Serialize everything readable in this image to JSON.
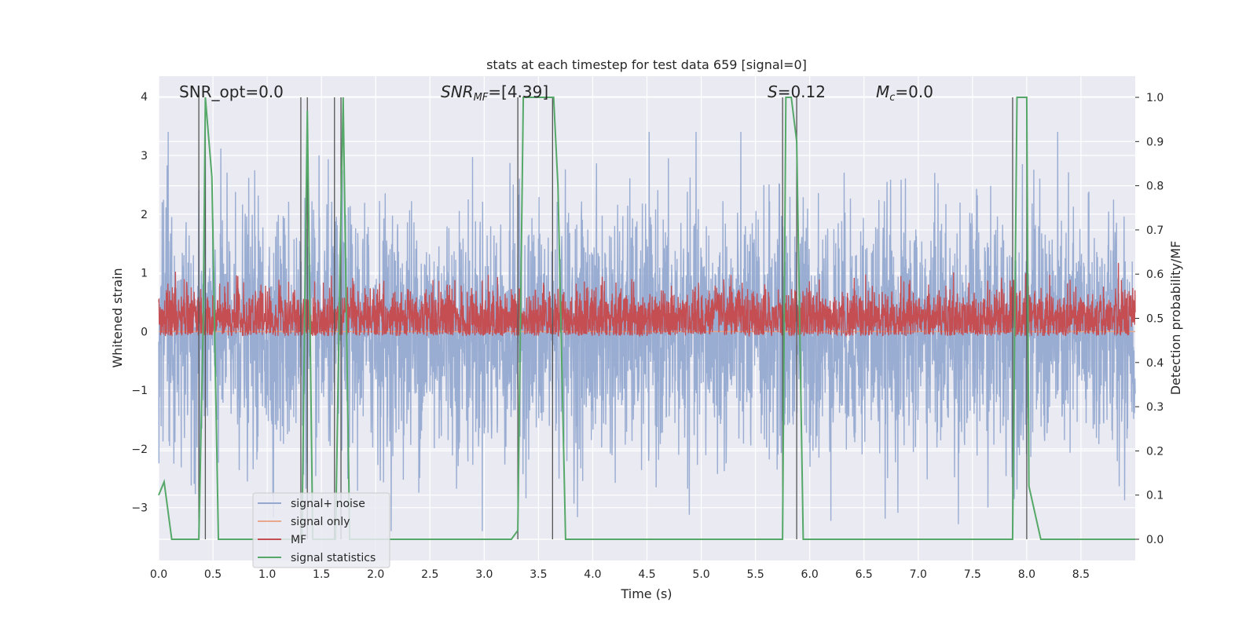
{
  "chart_data": {
    "type": "line",
    "title": "stats at each timestep for test data 659 [signal=0]",
    "xlabel": "Time (s)",
    "ylabel_left": "Whitened strain",
    "ylabel_right": "Detection probability/MF",
    "xlim": [
      0.0,
      9.0
    ],
    "ylim_left": [
      -3.9,
      4.35
    ],
    "ylim_right": [
      -0.048,
      1.048
    ],
    "x_ticks": [
      "0.0",
      "0.5",
      "1.0",
      "1.5",
      "2.0",
      "2.5",
      "3.0",
      "3.5",
      "4.0",
      "4.5",
      "5.0",
      "5.5",
      "6.0",
      "6.5",
      "7.0",
      "7.5",
      "8.0",
      "8.5"
    ],
    "y_ticks_left": [
      "−3",
      "−2",
      "−1",
      "0",
      "1",
      "2",
      "3",
      "4"
    ],
    "y_ticks_right": [
      "0.0",
      "0.1",
      "0.2",
      "0.3",
      "0.4",
      "0.5",
      "0.6",
      "0.7",
      "0.8",
      "0.9",
      "1.0"
    ],
    "grid": true,
    "legend_position": "lower-left",
    "annotations": {
      "snr_opt": "SNR_opt=0.0",
      "snr_mf_prefix": "SNR",
      "snr_mf_sub": "MF",
      "snr_mf_suffix": "=[4.39]",
      "s_var": "S",
      "s_val": "=0.12",
      "mc_var": "M",
      "mc_sub": "c",
      "mc_val": "=0.0"
    },
    "series": [
      {
        "name": "signal+ noise",
        "color": "#95a9d0",
        "description_range": [
          -3.4,
          3.4
        ]
      },
      {
        "name": "signal only",
        "color": "#e8a88c",
        "constant": 0.0
      },
      {
        "name": "MF",
        "color": "#c44e52",
        "axis": "right",
        "base": 0.5
      },
      {
        "name": "signal statistics",
        "color": "#55a868",
        "axis": "right",
        "x": [
          0.0,
          0.05,
          0.12,
          0.37,
          0.41,
          0.43,
          0.49,
          0.55,
          1.32,
          1.35,
          1.37,
          1.42,
          1.63,
          1.67,
          1.7,
          1.76,
          3.25,
          3.31,
          3.36,
          3.4,
          3.64,
          3.68,
          3.75,
          5.75,
          5.78,
          5.83,
          5.88,
          5.94,
          7.87,
          7.91,
          7.94,
          8.0,
          8.02,
          8.13,
          9.0
        ],
        "y": [
          0.1,
          0.13,
          0.0,
          0.0,
          0.48,
          1.0,
          0.82,
          0.0,
          0.0,
          0.6,
          0.97,
          0.0,
          0.0,
          0.6,
          1.0,
          0.0,
          0.0,
          0.02,
          1.0,
          1.0,
          1.0,
          0.8,
          0.0,
          0.0,
          1.0,
          1.0,
          0.9,
          0.0,
          0.0,
          1.0,
          1.0,
          1.0,
          0.12,
          0.0,
          0.0
        ]
      }
    ],
    "vertical_lines_x": [
      0.37,
      0.43,
      1.31,
      1.37,
      1.62,
      1.68,
      3.31,
      3.63,
      5.75,
      5.88,
      7.87,
      8.0
    ]
  }
}
